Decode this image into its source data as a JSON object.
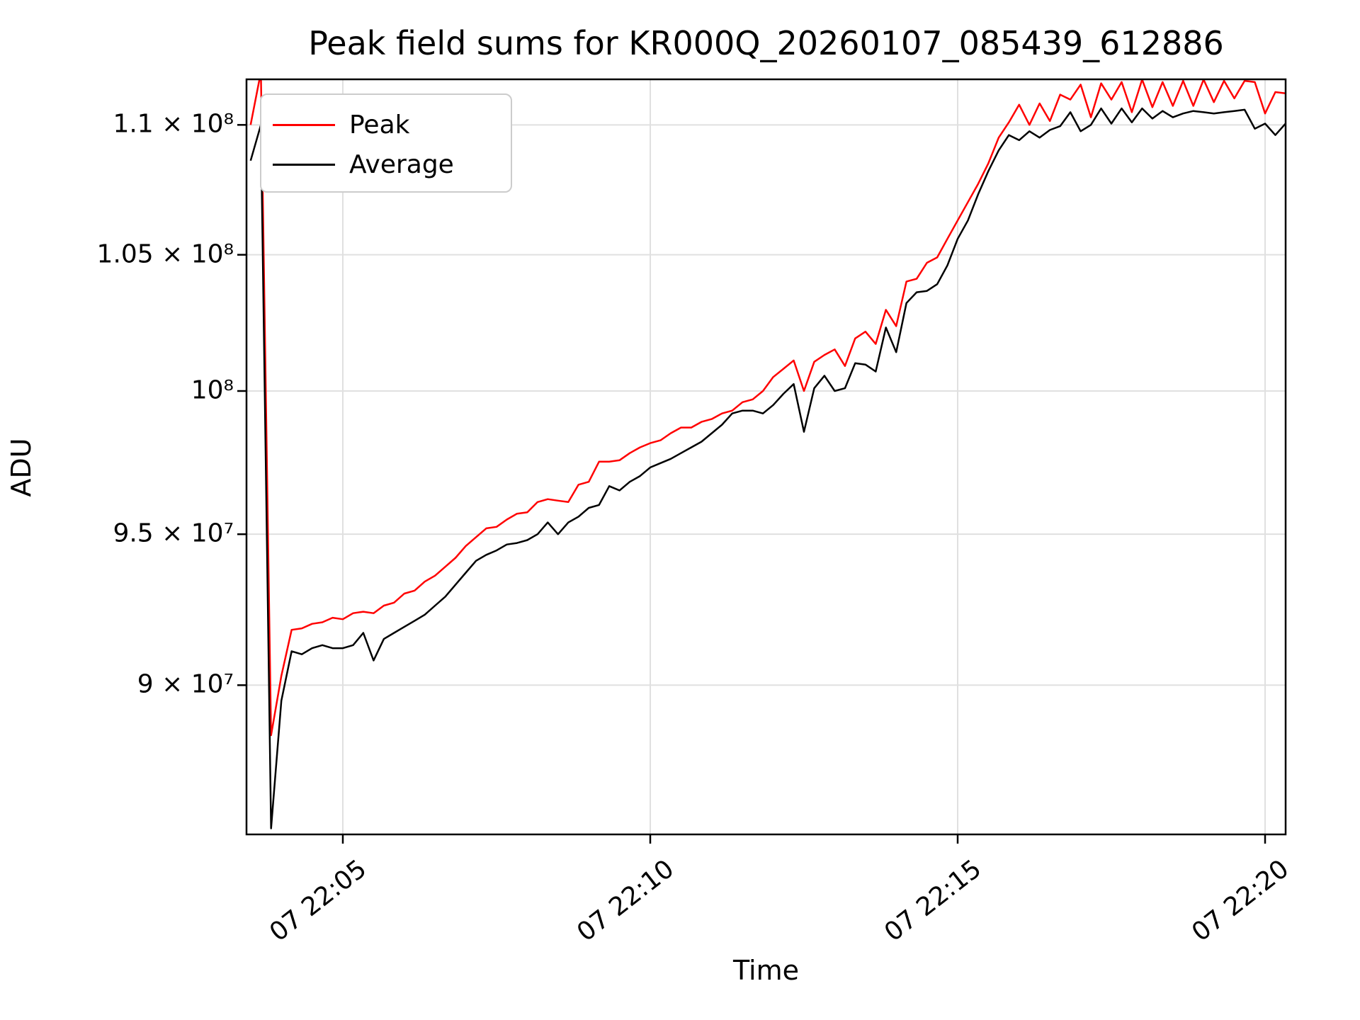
{
  "chart_data": {
    "type": "line",
    "title": "Peak field sums for KR000Q_20260107_085439_612886",
    "xlabel": "Time",
    "ylabel": "ADU",
    "yscale": "log",
    "grid": true,
    "legend_position": "upper left",
    "ylim_millions": [
      85.3,
      111.8
    ],
    "x_ticks": [
      {
        "label": "07 22:05",
        "time": "22:05:00"
      },
      {
        "label": "07 22:10",
        "time": "22:10:00"
      },
      {
        "label": "07 22:15",
        "time": "22:15:00"
      },
      {
        "label": "07 22:20",
        "time": "22:20:00"
      }
    ],
    "y_ticks": [
      {
        "label": "9 × 10⁷",
        "value_millions": 90
      },
      {
        "label": "9.5 × 10⁷",
        "value_millions": 95
      },
      {
        "label": "10⁸",
        "value_millions": 100
      },
      {
        "label": "1.05 × 10⁸",
        "value_millions": 105
      },
      {
        "label": "1.1 × 10⁸",
        "value_millions": 110
      }
    ],
    "x": [
      "22:03:30",
      "22:03:40",
      "22:03:50",
      "22:04:00",
      "22:04:10",
      "22:04:20",
      "22:04:30",
      "22:04:40",
      "22:04:50",
      "22:05:00",
      "22:05:10",
      "22:05:20",
      "22:05:30",
      "22:05:40",
      "22:05:50",
      "22:06:00",
      "22:06:10",
      "22:06:20",
      "22:06:30",
      "22:06:40",
      "22:06:50",
      "22:07:00",
      "22:07:10",
      "22:07:20",
      "22:07:30",
      "22:07:40",
      "22:07:50",
      "22:08:00",
      "22:08:10",
      "22:08:20",
      "22:08:30",
      "22:08:40",
      "22:08:50",
      "22:09:00",
      "22:09:10",
      "22:09:20",
      "22:09:30",
      "22:09:40",
      "22:09:50",
      "22:10:00",
      "22:10:10",
      "22:10:20",
      "22:10:30",
      "22:10:40",
      "22:10:50",
      "22:11:00",
      "22:11:10",
      "22:11:20",
      "22:11:30",
      "22:11:40",
      "22:11:50",
      "22:12:00",
      "22:12:10",
      "22:12:20",
      "22:12:30",
      "22:12:40",
      "22:12:50",
      "22:13:00",
      "22:13:10",
      "22:13:20",
      "22:13:30",
      "22:13:40",
      "22:13:50",
      "22:14:00",
      "22:14:10",
      "22:14:20",
      "22:14:30",
      "22:14:40",
      "22:14:50",
      "22:15:00",
      "22:15:10",
      "22:15:20",
      "22:15:30",
      "22:15:40",
      "22:15:50",
      "22:16:00",
      "22:16:10",
      "22:16:20",
      "22:16:30",
      "22:16:40",
      "22:16:50",
      "22:17:00",
      "22:17:10",
      "22:17:20",
      "22:17:30",
      "22:17:40",
      "22:17:50",
      "22:18:00",
      "22:18:10",
      "22:18:20",
      "22:18:30",
      "22:18:40",
      "22:18:50",
      "22:19:00",
      "22:19:10",
      "22:19:20",
      "22:19:30",
      "22:19:40",
      "22:19:50",
      "22:20:00",
      "22:20:10",
      "22:20:20"
    ],
    "series": [
      {
        "name": "Peak",
        "color": "#ff0000",
        "values_millions": [
          110.0,
          112.1,
          88.4,
          90.3,
          91.8,
          91.85,
          92.0,
          92.05,
          92.2,
          92.15,
          92.35,
          92.4,
          92.35,
          92.6,
          92.7,
          93.0,
          93.1,
          93.4,
          93.6,
          93.9,
          94.2,
          94.6,
          94.9,
          95.2,
          95.25,
          95.5,
          95.7,
          95.75,
          96.1,
          96.2,
          96.15,
          96.1,
          96.7,
          96.8,
          97.5,
          97.5,
          97.55,
          97.8,
          98.0,
          98.15,
          98.25,
          98.5,
          98.7,
          98.7,
          98.9,
          99.0,
          99.2,
          99.3,
          99.6,
          99.7,
          100.0,
          100.5,
          100.8,
          101.1,
          100.0,
          101.05,
          101.3,
          101.5,
          100.9,
          101.9,
          102.15,
          101.7,
          102.95,
          102.35,
          104.0,
          104.1,
          104.7,
          104.9,
          105.6,
          106.3,
          107.0,
          107.7,
          108.5,
          109.5,
          110.1,
          110.8,
          110.0,
          110.85,
          110.15,
          111.2,
          111.0,
          111.6,
          110.3,
          111.65,
          111.0,
          111.7,
          110.5,
          111.8,
          110.7,
          111.7,
          110.75,
          111.75,
          110.75,
          111.8,
          110.9,
          111.75,
          111.05,
          111.75,
          111.7,
          110.45,
          111.3,
          111.25
        ]
      },
      {
        "name": "Average",
        "color": "#000000",
        "values_millions": [
          108.6,
          110.0,
          85.5,
          89.5,
          91.1,
          91.0,
          91.2,
          91.3,
          91.2,
          91.2,
          91.3,
          91.7,
          90.8,
          91.5,
          91.7,
          91.9,
          92.1,
          92.3,
          92.6,
          92.9,
          93.3,
          93.7,
          94.1,
          94.3,
          94.45,
          94.65,
          94.7,
          94.8,
          95.0,
          95.4,
          95.0,
          95.4,
          95.6,
          95.9,
          96.0,
          96.65,
          96.5,
          96.8,
          97.0,
          97.3,
          97.45,
          97.6,
          97.8,
          98.0,
          98.2,
          98.5,
          98.8,
          99.2,
          99.3,
          99.3,
          99.2,
          99.5,
          99.9,
          100.25,
          98.55,
          100.1,
          100.55,
          100.0,
          100.1,
          101.0,
          100.95,
          100.7,
          102.3,
          101.4,
          103.2,
          103.6,
          103.65,
          103.9,
          104.6,
          105.6,
          106.3,
          107.3,
          108.2,
          109.0,
          109.6,
          109.4,
          109.75,
          109.5,
          109.8,
          109.95,
          110.5,
          109.75,
          110.0,
          110.65,
          110.05,
          110.65,
          110.1,
          110.65,
          110.25,
          110.55,
          110.3,
          110.45,
          110.55,
          110.5,
          110.45,
          110.5,
          110.55,
          110.6,
          109.85,
          110.05,
          109.6,
          110.05
        ]
      }
    ]
  }
}
